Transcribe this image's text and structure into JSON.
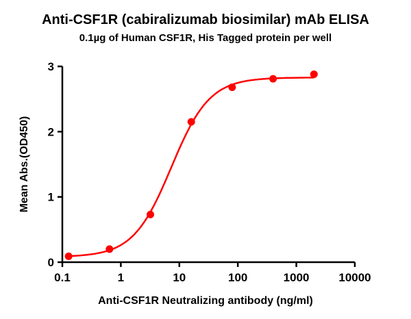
{
  "chart_data": {
    "type": "scatter",
    "title": "Anti-CSF1R (cabiralizumab biosimilar) mAb ELISA",
    "subtitle": "0.1µg of Human CSF1R, His Tagged protein per well",
    "xlabel": "Anti-CSF1R Neutralizing antibody (ng/ml)",
    "ylabel": "Mean Abs.(OD450)",
    "xscale": "log",
    "xlim": [
      0.1,
      10000
    ],
    "ylim": [
      0,
      3
    ],
    "xticks": [
      "0.1",
      "1",
      "10",
      "100",
      "1000",
      "10000"
    ],
    "yticks": [
      "0",
      "1",
      "2",
      "3"
    ],
    "grid": false,
    "color": "#ff0000",
    "fit": "sigmoidal 4PL curve",
    "series": [
      {
        "x": [
          0.128,
          0.64,
          3.2,
          16,
          80,
          400,
          2000
        ],
        "y": [
          0.09,
          0.2,
          0.73,
          2.15,
          2.68,
          2.81,
          2.88
        ]
      }
    ]
  }
}
